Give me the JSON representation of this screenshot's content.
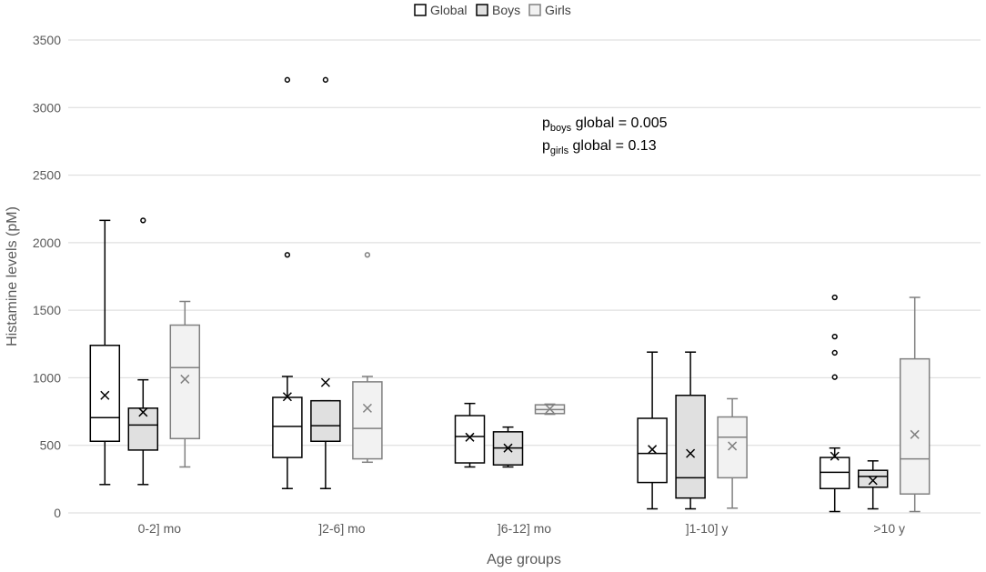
{
  "chart_data": {
    "type": "box",
    "title": "",
    "xlabel": "Age groups",
    "ylabel": "Histamine levels (pM)",
    "ylim": [
      0,
      3500
    ],
    "yticks": [
      0,
      500,
      1000,
      1500,
      2000,
      2500,
      3000,
      3500
    ],
    "grid": true,
    "legend_position": "top",
    "categories": [
      "0-2]  mo",
      "]2-6] mo",
      "]6-12] mo",
      "]1-10] y",
      ">10 y"
    ],
    "series": [
      {
        "name": "Global",
        "fill": "#ffffff",
        "stroke": "#000000",
        "boxes": [
          {
            "min": 210,
            "q1": 530,
            "median": 705,
            "q3": 1240,
            "max": 2165,
            "mean": 870,
            "outliers": []
          },
          {
            "min": 180,
            "q1": 410,
            "median": 640,
            "q3": 855,
            "max": 1010,
            "mean": 860,
            "outliers": [
              1910,
              3205
            ]
          },
          {
            "min": 340,
            "q1": 370,
            "median": 565,
            "q3": 720,
            "max": 810,
            "mean": 560,
            "outliers": []
          },
          {
            "min": 30,
            "q1": 225,
            "median": 440,
            "q3": 700,
            "max": 1190,
            "mean": 470,
            "outliers": []
          },
          {
            "min": 10,
            "q1": 180,
            "median": 300,
            "q3": 410,
            "max": 480,
            "mean": 420,
            "outliers": [
              1005,
              1185,
              1305,
              1595
            ]
          }
        ]
      },
      {
        "name": "Boys",
        "fill": "#e0e0e0",
        "stroke": "#000000",
        "boxes": [
          {
            "min": 210,
            "q1": 465,
            "median": 650,
            "q3": 775,
            "max": 985,
            "mean": 745,
            "outliers": [
              2165
            ]
          },
          {
            "min": 180,
            "q1": 530,
            "median": 645,
            "q3": 830,
            "max": 830,
            "mean": 965,
            "outliers": [
              3205
            ]
          },
          {
            "min": 340,
            "q1": 355,
            "median": 480,
            "q3": 600,
            "max": 635,
            "mean": 480,
            "outliers": []
          },
          {
            "min": 30,
            "q1": 110,
            "median": 260,
            "q3": 870,
            "max": 1190,
            "mean": 440,
            "outliers": []
          },
          {
            "min": 30,
            "q1": 190,
            "median": 270,
            "q3": 315,
            "max": 385,
            "mean": 240,
            "outliers": []
          }
        ]
      },
      {
        "name": "Girls",
        "fill": "#f2f2f2",
        "stroke": "#808080",
        "boxes": [
          {
            "min": 340,
            "q1": 550,
            "median": 1075,
            "q3": 1390,
            "max": 1565,
            "mean": 990,
            "outliers": []
          },
          {
            "min": 375,
            "q1": 400,
            "median": 625,
            "q3": 970,
            "max": 1010,
            "mean": 775,
            "outliers": [
              1910
            ]
          },
          {
            "min": 730,
            "q1": 735,
            "median": 765,
            "q3": 800,
            "max": 805,
            "mean": 770,
            "outliers": []
          },
          {
            "min": 35,
            "q1": 260,
            "median": 560,
            "q3": 710,
            "max": 845,
            "mean": 495,
            "outliers": []
          },
          {
            "min": 10,
            "q1": 140,
            "median": 400,
            "q3": 1140,
            "max": 1595,
            "mean": 580,
            "outliers": []
          }
        ]
      }
    ],
    "annotations": [
      {
        "base": "p",
        "sub": "boys",
        "text": " global = 0.005"
      },
      {
        "base": "p",
        "sub": "girls",
        "text": " global = 0.13"
      }
    ]
  }
}
